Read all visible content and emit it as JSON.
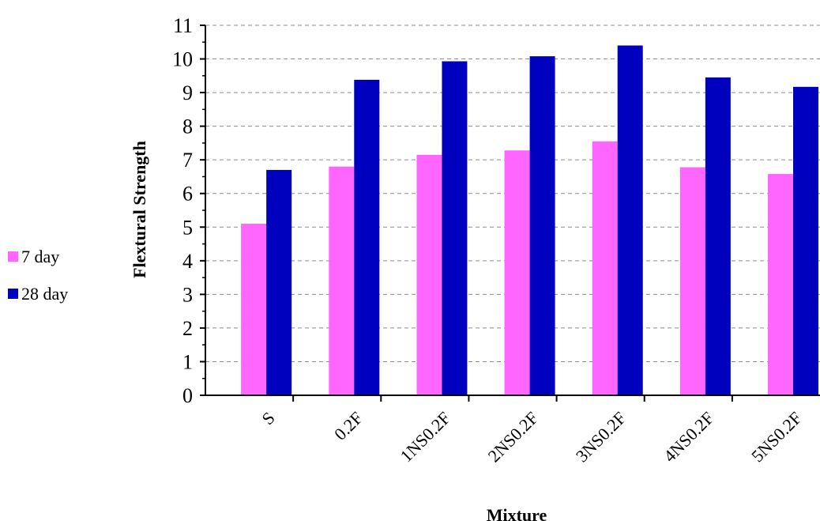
{
  "chart_data": {
    "type": "bar",
    "title": "",
    "xlabel": "Mixture",
    "ylabel": "Flextural Strength",
    "ylim": [
      0,
      11
    ],
    "ytick_step": 1,
    "grid": "horizontal-dashed",
    "legend_position": "left",
    "categories": [
      "S",
      "0.2F",
      "1NS0.2F",
      "2NS0.2F",
      "3NS0.2F",
      "4NS0.2F",
      "5NS0.2F"
    ],
    "series": [
      {
        "name": "7 day",
        "color": "#ff66ff",
        "values": [
          5.1,
          6.8,
          7.15,
          7.28,
          7.55,
          6.78,
          6.58
        ]
      },
      {
        "name": "28 day",
        "color": "#0000bf",
        "values": [
          6.7,
          9.38,
          9.93,
          10.08,
          10.4,
          9.45,
          9.17
        ]
      }
    ]
  }
}
